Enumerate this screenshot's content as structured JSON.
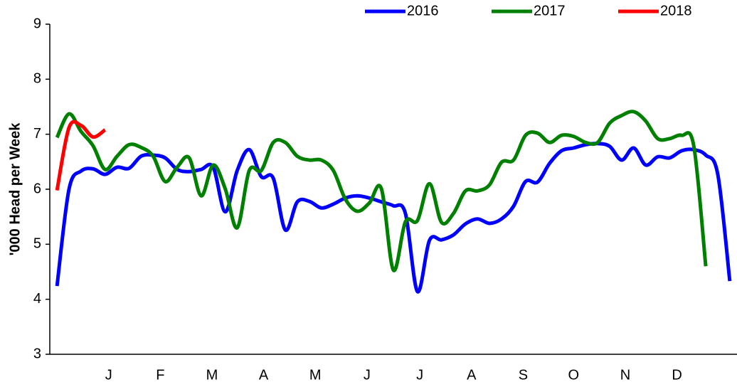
{
  "chart_data": {
    "type": "line",
    "y_label": "'000 Head per Week",
    "x": [
      1,
      2,
      3,
      4,
      5,
      6,
      7,
      8,
      9,
      10,
      11,
      12,
      13,
      14,
      15,
      16,
      17,
      18,
      19,
      20,
      21,
      22,
      23,
      24,
      25,
      26,
      27,
      28,
      29,
      30,
      31,
      32,
      33,
      34,
      35,
      36,
      37,
      38,
      39,
      40,
      41,
      42,
      43,
      44,
      45,
      46,
      47,
      48,
      49,
      50,
      51,
      52,
      53,
      54,
      55,
      56,
      57
    ],
    "series": [
      {
        "name": "2016",
        "color": "#0000ff",
        "values": [
          4.24,
          6.0,
          6.33,
          6.37,
          6.27,
          6.4,
          6.38,
          6.6,
          6.62,
          6.57,
          6.36,
          6.32,
          6.36,
          6.4,
          5.59,
          6.34,
          6.72,
          6.23,
          6.2,
          5.26,
          5.77,
          5.78,
          5.66,
          5.73,
          5.84,
          5.88,
          5.84,
          5.77,
          5.7,
          5.56,
          4.14,
          5.07,
          5.08,
          5.17,
          5.37,
          5.46,
          5.38,
          5.46,
          5.69,
          6.14,
          6.13,
          6.47,
          6.7,
          6.75,
          6.81,
          6.83,
          6.78,
          6.53,
          6.75,
          6.44,
          6.59,
          6.57,
          6.7,
          6.72,
          6.62,
          6.27,
          4.33
        ]
      },
      {
        "name": "2017",
        "color": "#008000",
        "values": [
          6.94,
          7.37,
          7.05,
          6.79,
          6.36,
          6.6,
          6.81,
          6.76,
          6.6,
          6.14,
          6.4,
          6.57,
          5.88,
          6.44,
          6.01,
          5.3,
          6.34,
          6.34,
          6.85,
          6.85,
          6.6,
          6.53,
          6.53,
          6.34,
          5.82,
          5.6,
          5.75,
          6.01,
          4.53,
          5.41,
          5.43,
          6.1,
          5.4,
          5.56,
          5.97,
          5.97,
          6.08,
          6.49,
          6.53,
          6.98,
          7.02,
          6.85,
          6.98,
          6.96,
          6.85,
          6.85,
          7.2,
          7.34,
          7.41,
          7.24,
          6.92,
          6.92,
          6.98,
          6.79,
          4.6,
          null,
          null
        ]
      },
      {
        "name": "2018",
        "color": "#ff0000",
        "values": [
          5.98,
          7.12,
          7.16,
          6.95,
          7.08,
          null,
          null,
          null,
          null,
          null,
          null,
          null,
          null,
          null,
          null,
          null,
          null,
          null,
          null,
          null,
          null,
          null,
          null,
          null,
          null,
          null,
          null,
          null,
          null,
          null,
          null,
          null,
          null,
          null,
          null,
          null,
          null,
          null,
          null,
          null,
          null,
          null,
          null,
          null,
          null,
          null,
          null,
          null,
          null,
          null,
          null,
          null,
          null,
          null,
          null,
          null,
          null
        ]
      }
    ],
    "xlim": [
      0.4,
      57.6
    ],
    "xticks": [
      {
        "value": 5.3,
        "label": "J"
      },
      {
        "value": 9.6,
        "label": "F"
      },
      {
        "value": 13.9,
        "label": "M"
      },
      {
        "value": 18.2,
        "label": "A"
      },
      {
        "value": 22.5,
        "label": "M"
      },
      {
        "value": 26.8,
        "label": "J"
      },
      {
        "value": 31.2,
        "label": "J"
      },
      {
        "value": 35.5,
        "label": "A"
      },
      {
        "value": 39.8,
        "label": "S"
      },
      {
        "value": 44.0,
        "label": "O"
      },
      {
        "value": 48.3,
        "label": "N"
      },
      {
        "value": 52.6,
        "label": "D"
      }
    ],
    "ylim": [
      3,
      9
    ],
    "yticks": [
      3,
      4,
      5,
      6,
      7,
      8,
      9
    ],
    "legend": "top-right"
  }
}
